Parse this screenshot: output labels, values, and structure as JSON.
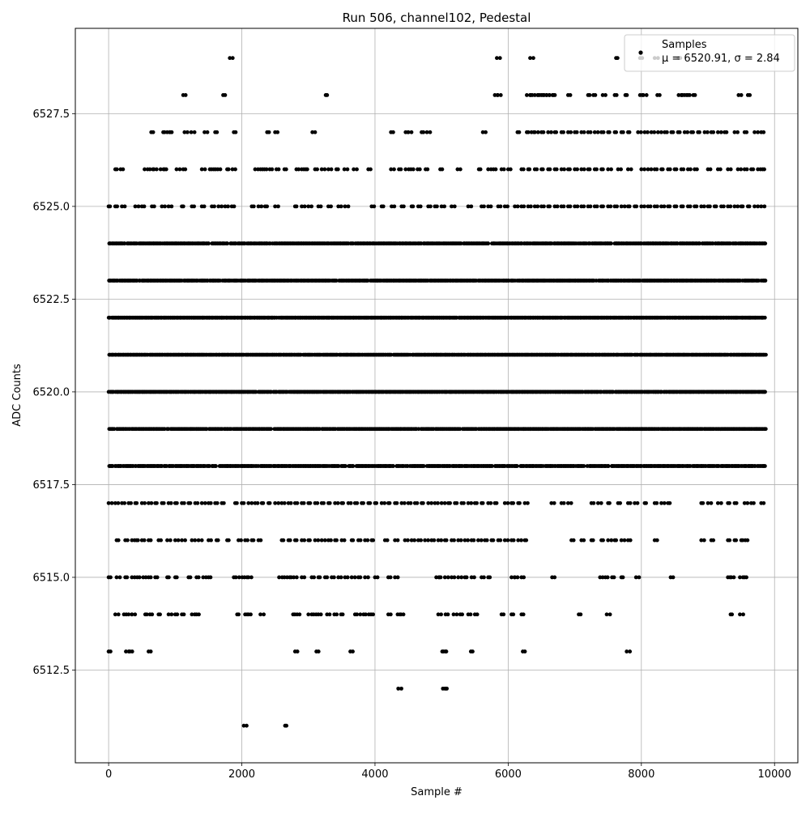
{
  "chart_data": {
    "type": "scatter",
    "title": "Run 506, channel102, Pedestal",
    "xlabel": "Sample #",
    "ylabel": "ADC Counts",
    "xlim": [
      -500,
      10350
    ],
    "ylim": [
      6510.0,
      6529.8
    ],
    "xticks": [
      0,
      2000,
      4000,
      6000,
      8000,
      10000
    ],
    "xtick_labels": [
      "0",
      "2000",
      "4000",
      "6000",
      "8000",
      "10000"
    ],
    "yticks": [
      6512.5,
      6515.0,
      6517.5,
      6520.0,
      6522.5,
      6525.0,
      6527.5
    ],
    "ytick_labels": [
      "6512.5",
      "6515.0",
      "6517.5",
      "6520.0",
      "6522.5",
      "6525.0",
      "6527.5"
    ],
    "grid": true,
    "legend": {
      "placement": "top-right",
      "entries": [
        {
          "label": "Samples",
          "sublabel": "μ = 6520.91, σ = 2.84"
        }
      ]
    },
    "series": [
      {
        "name": "Samples",
        "color": "#000000",
        "n_samples": 9860,
        "mean": 6520.91,
        "std": 2.84,
        "x_range": [
          0,
          9860
        ],
        "levels": [
          {
            "y": 6529,
            "x": [
              1820,
              5830,
              6330,
              7620,
              7980,
              8200,
              8560
            ]
          },
          {
            "y": 6528,
            "x": [
              1120,
              1720,
              3260,
              5800,
              5840,
              6280,
              6340,
              6400,
              6450,
              6500,
              6540,
              6580,
              6620,
              6680,
              6900,
              7200,
              7280,
              7420,
              7600,
              7760,
              7980,
              8030,
              8240,
              8560,
              8600,
              8650,
              8700,
              8780,
              9460,
              9600
            ]
          },
          {
            "y": 6527,
            "x": [
              640,
              820,
              880,
              920,
              1140,
              1240,
              1440,
              1600,
              1880,
              2380,
              2500,
              3060,
              4240,
              4460,
              4500,
              4700,
              4780,
              5620,
              6140,
              6280,
              6350,
              6400,
              6500,
              6600,
              6700,
              6800,
              6900,
              7000,
              7100,
              7200,
              7300,
              7400,
              7500,
              7600,
              7700,
              7800,
              7950,
              8050,
              8150,
              8250,
              8350,
              8450,
              8550,
              8650,
              8750,
              8850,
              8950,
              9050,
              9150,
              9250,
              9400,
              9550,
              9700,
              9800
            ]
          },
          {
            "y": 6526,
            "x": [
              100,
              180,
              540,
              620,
              680,
              780,
              840,
              1020,
              1120,
              1400,
              1520,
              1580,
              1640,
              1780,
              1860,
              2200,
              2280,
              2340,
              2420,
              2520,
              2640,
              2820,
              2900,
              2960,
              3100,
              3200,
              3300,
              3420,
              3540,
              3680,
              3900,
              4240,
              4360,
              4460,
              4540,
              4640,
              4760,
              4980,
              5240,
              5560,
              5700,
              5780,
              5900,
              6000,
              6200,
              6300,
              6400,
              6500,
              6600,
              6700,
              6800,
              6900,
              7000,
              7100,
              7200,
              7300,
              7400,
              7500,
              7650,
              7800,
              8000,
              8100,
              8200,
              8300,
              8400,
              8500,
              8600,
              8700,
              8800,
              9000,
              9150,
              9300,
              9450,
              9550,
              9650,
              9750,
              9820
            ]
          },
          {
            "y": 6525,
            "x": [
              0,
              100,
              200,
              400,
              500,
              650,
              800,
              900,
              1100,
              1250,
              1400,
              1550,
              1650,
              1750,
              1850,
              2150,
              2250,
              2350,
              2500,
              2800,
              2900,
              3000,
              3150,
              3300,
              3450,
              3550,
              3950,
              4100,
              4250,
              4400,
              4550,
              4650,
              4800,
              4900,
              5000,
              5150,
              5400,
              5600,
              5700,
              5850,
              5950,
              6100,
              6200,
              6300,
              6400,
              6500,
              6600,
              6700,
              6800,
              6900,
              7000,
              7100,
              7200,
              7300,
              7400,
              7500,
              7600,
              7700,
              7800,
              7900,
              8000,
              8100,
              8200,
              8300,
              8400,
              8500,
              8600,
              8700,
              8800,
              8900,
              9000,
              9100,
              9200,
              9300,
              9400,
              9500,
              9600,
              9700,
              9800
            ]
          },
          {
            "y": 6524,
            "range": [
              0,
              9860
            ],
            "density": 0.9
          },
          {
            "y": 6523,
            "range": [
              0,
              9860
            ],
            "density": 0.95
          },
          {
            "y": 6522,
            "range": [
              0,
              9860
            ],
            "density": 0.97
          },
          {
            "y": 6521,
            "range": [
              0,
              9860
            ],
            "density": 0.97
          },
          {
            "y": 6520,
            "range": [
              0,
              9860
            ],
            "density": 0.96
          },
          {
            "y": 6519,
            "range": [
              0,
              9860
            ],
            "density": 0.92
          },
          {
            "y": 6518,
            "range": [
              0,
              9860
            ],
            "density": 0.88
          },
          {
            "y": 6517,
            "x": [
              0,
              100,
              200,
              300,
              400,
              500,
              600,
              700,
              800,
              900,
              1000,
              1100,
              1200,
              1300,
              1400,
              1500,
              1600,
              1700,
              1900,
              2000,
              2100,
              2200,
              2300,
              2400,
              2500,
              2600,
              2700,
              2800,
              2900,
              3000,
              3100,
              3200,
              3300,
              3400,
              3500,
              3600,
              3700,
              3800,
              3900,
              4000,
              4100,
              4200,
              4300,
              4400,
              4500,
              4600,
              4700,
              4800,
              4900,
              5000,
              5100,
              5200,
              5300,
              5400,
              5500,
              5600,
              5700,
              5800,
              5950,
              6050,
              6150,
              6250,
              6650,
              6800,
              6900,
              7250,
              7350,
              7500,
              7650,
              7800,
              7900,
              8050,
              8200,
              8300,
              8400,
              8900,
              9000,
              9150,
              9300,
              9400,
              9550,
              9650,
              9800
            ]
          },
          {
            "y": 6516,
            "x": [
              120,
              250,
              350,
              420,
              500,
              600,
              750,
              880,
              1000,
              1100,
              1250,
              1350,
              1500,
              1620,
              1780,
              1950,
              2050,
              2150,
              2250,
              2600,
              2700,
              2800,
              2900,
              3000,
              3100,
              3200,
              3300,
              3400,
              3500,
              3650,
              3750,
              3850,
              3950,
              4150,
              4300,
              4450,
              4550,
              4650,
              4750,
              4850,
              4950,
              5050,
              5150,
              5250,
              5350,
              5450,
              5550,
              5650,
              5750,
              5850,
              5950,
              6050,
              6150,
              6250,
              6950,
              7100,
              7250,
              7400,
              7500,
              7600,
              7700,
              7800,
              8200,
              8900,
              9050,
              9300,
              9400,
              9500,
              9560
            ]
          },
          {
            "y": 6515,
            "x": [
              0,
              120,
              250,
              350,
              430,
              520,
              600,
              700,
              880,
              1000,
              1200,
              1320,
              1420,
              1500,
              1880,
              1960,
              2040,
              2100,
              2560,
              2640,
              2720,
              2780,
              2900,
              3050,
              3150,
              3250,
              3350,
              3450,
              3550,
              3650,
              3750,
              3850,
              4000,
              4200,
              4300,
              4920,
              4960,
              5050,
              5150,
              5250,
              5350,
              5450,
              5600,
              5700,
              6050,
              6100,
              6200,
              6660,
              7380,
              7460,
              7560,
              7700,
              7920,
              8440,
              9300,
              9350,
              9480,
              9550
            ]
          },
          {
            "y": 6514,
            "x": [
              100,
              230,
              300,
              350,
              550,
              620,
              750,
              900,
              1000,
              1100,
              1250,
              1320,
              1930,
              2050,
              2100,
              2280,
              2770,
              2830,
              3000,
              3080,
              3150,
              3280,
              3390,
              3490,
              3700,
              3780,
              3860,
              3940,
              4200,
              4340,
              4390,
              4950,
              5060,
              5180,
              5280,
              5400,
              5500,
              5900,
              6050,
              6200,
              7060,
              7480,
              9340,
              9480
            ]
          },
          {
            "y": 6513,
            "x": [
              0,
              260,
              320,
              600,
              2800,
              3120,
              3630,
              5010,
              5030,
              5440,
              6220,
              7780
            ]
          },
          {
            "y": 6512,
            "x": [
              4350,
              5020,
              5050
            ]
          },
          {
            "y": 6511,
            "x": [
              2030,
              2650
            ]
          }
        ]
      }
    ]
  }
}
